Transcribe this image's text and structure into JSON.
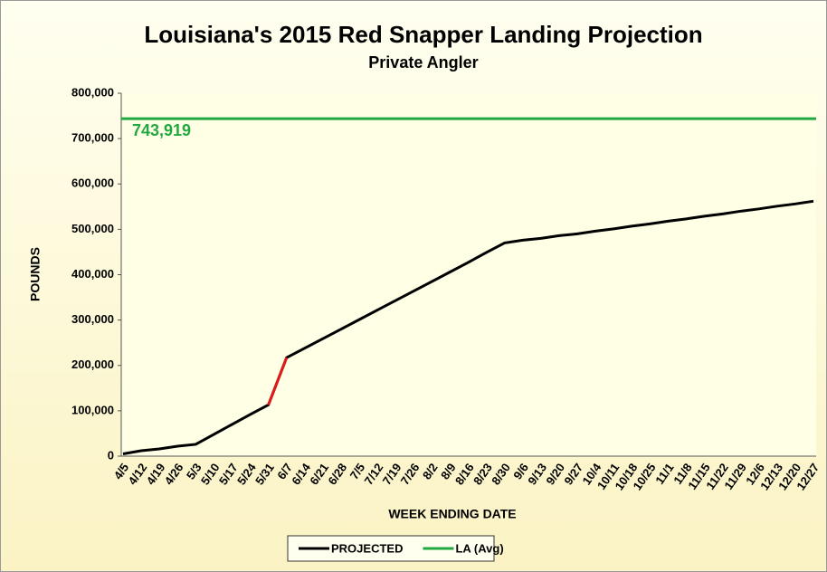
{
  "chart_data": {
    "type": "line",
    "title": "Louisiana's 2015 Red Snapper Landing Projection",
    "subtitle": "Private Angler",
    "y_label": "POUNDS",
    "x_label": "WEEK ENDING DATE",
    "categories": [
      "4/5",
      "4/12",
      "4/19",
      "4/26",
      "5/3",
      "5/10",
      "5/17",
      "5/24",
      "5/31",
      "6/7",
      "6/14",
      "6/21",
      "6/28",
      "7/5",
      "7/12",
      "7/19",
      "7/26",
      "8/2",
      "8/9",
      "8/16",
      "8/23",
      "8/30",
      "9/6",
      "9/13",
      "9/20",
      "9/27",
      "10/4",
      "10/11",
      "10/18",
      "10/25",
      "11/1",
      "11/8",
      "11/15",
      "11/22",
      "11/29",
      "12/6",
      "12/13",
      "12/20",
      "12/27"
    ],
    "series": [
      {
        "name": "PROJECTED",
        "color": "#000000",
        "values": [
          5000,
          12000,
          16000,
          22000,
          26000,
          48000,
          70000,
          92000,
          113000,
          217000,
          238000,
          259000,
          280000,
          301000,
          322000,
          343000,
          364000,
          385000,
          406000,
          427000,
          449000,
          470000,
          476000,
          480000,
          486000,
          490000,
          496000,
          501000,
          507000,
          512000,
          518000,
          523000,
          529000,
          534000,
          540000,
          545000,
          551000,
          556000,
          562000
        ],
        "highlight": {
          "from": 8,
          "to": 9,
          "color": "#e31a1a"
        }
      },
      {
        "name": "LA (Avg)",
        "color": "#22a840",
        "value": 743919,
        "value_label": "743,919"
      }
    ],
    "ylim": [
      0,
      800000
    ],
    "yticks": [
      0,
      {
        "value": 100000,
        "label": "100,000"
      },
      {
        "value": 200000,
        "label": "200,000"
      },
      {
        "value": 300000,
        "label": "300,000"
      },
      {
        "value": 400000,
        "label": "400,000"
      },
      {
        "value": 500000,
        "label": "500,000"
      },
      {
        "value": 600000,
        "label": "600,000"
      },
      {
        "value": 700000,
        "label": "700,000"
      },
      {
        "value": 800000,
        "label": "800,000"
      }
    ],
    "grid": false,
    "legend": "bottom"
  }
}
